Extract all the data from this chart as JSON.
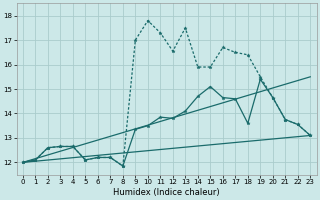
{
  "xlabel": "Humidex (Indice chaleur)",
  "xlim": [
    -0.5,
    23.5
  ],
  "ylim": [
    11.5,
    18.5
  ],
  "yticks": [
    12,
    13,
    14,
    15,
    16,
    17,
    18
  ],
  "xticks": [
    0,
    1,
    2,
    3,
    4,
    5,
    6,
    7,
    8,
    9,
    10,
    11,
    12,
    13,
    14,
    15,
    16,
    17,
    18,
    19,
    20,
    21,
    22,
    23
  ],
  "bg_color": "#cce8e8",
  "grid_color": "#aacccc",
  "line_color": "#1a6b6b",
  "line1_straight": {
    "x": [
      0,
      23
    ],
    "y": [
      12.0,
      13.1
    ]
  },
  "line2_straight": {
    "x": [
      0,
      23
    ],
    "y": [
      12.0,
      15.5
    ]
  },
  "line3_solid_markers": {
    "x": [
      0,
      1,
      2,
      3,
      4,
      5,
      6,
      7,
      8,
      9,
      10,
      11,
      12,
      13,
      14,
      15,
      16,
      17,
      18,
      19,
      20,
      21,
      22,
      23
    ],
    "y": [
      12.0,
      12.1,
      12.6,
      12.65,
      12.65,
      12.1,
      12.2,
      12.2,
      11.85,
      13.35,
      13.5,
      13.85,
      13.8,
      14.1,
      14.7,
      15.1,
      14.65,
      14.6,
      13.6,
      15.4,
      14.65,
      13.75,
      13.55,
      13.1
    ]
  },
  "line4_dotted_markers": {
    "x": [
      0,
      1,
      2,
      3,
      4,
      5,
      6,
      7,
      8,
      9,
      10,
      11,
      12,
      13,
      14,
      15,
      16,
      17,
      18,
      19,
      20,
      21,
      22,
      23
    ],
    "y": [
      12.0,
      12.1,
      12.6,
      12.65,
      12.65,
      12.1,
      12.2,
      12.2,
      11.85,
      17.0,
      17.8,
      17.3,
      16.55,
      17.5,
      15.9,
      15.9,
      16.7,
      16.5,
      16.4,
      15.5,
      14.65,
      13.75,
      13.55,
      13.1
    ]
  }
}
